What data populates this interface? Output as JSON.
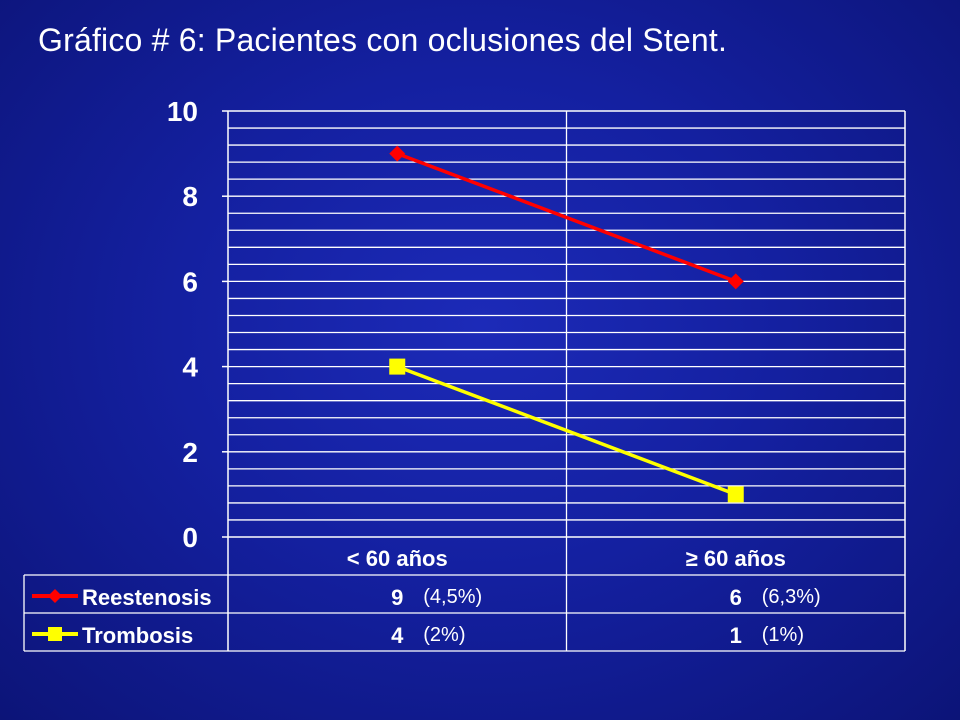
{
  "slide": {
    "title": "Gráfico # 6: Pacientes con oclusiones del Stent."
  },
  "chart_data": {
    "type": "line",
    "title": "",
    "categories": [
      "< 60 años",
      "≥ 60 años"
    ],
    "ylim": [
      0,
      10
    ],
    "yticks": [
      0,
      2,
      4,
      6,
      8,
      10
    ],
    "minor_gridline_step": 0.4,
    "grid": true,
    "legend": "data-table-below",
    "series": [
      {
        "name": "Reestenosis",
        "values": [
          9,
          6
        ],
        "value_labels": [
          "9",
          "6"
        ],
        "notes": [
          "(4,5%)",
          "(6,3%)"
        ],
        "color": "#ff0000",
        "marker": "diamond"
      },
      {
        "name": "Trombosis",
        "values": [
          4,
          1
        ],
        "value_labels": [
          "4",
          "1"
        ],
        "notes": [
          "(2%)",
          "(1%)"
        ],
        "color": "#ffff00",
        "marker": "square"
      }
    ]
  }
}
